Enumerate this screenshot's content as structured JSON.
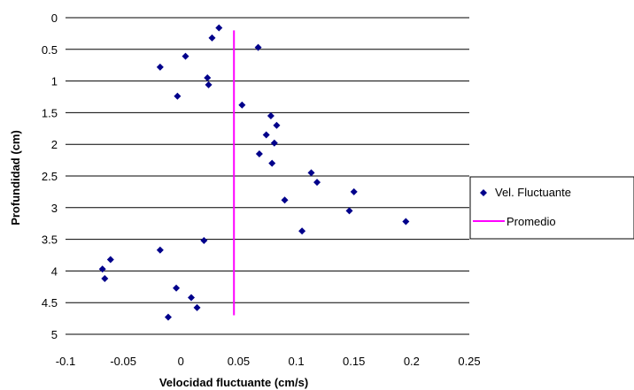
{
  "chart_data": {
    "type": "scatter",
    "xlabel": "Velocidad fluctuante (cm/s)",
    "ylabel": "Profundidad (cm)",
    "xlim": [
      -0.1,
      0.25
    ],
    "ylim": [
      0,
      5
    ],
    "y_inverted": true,
    "grid": "horizontal",
    "legend_position": "right",
    "x_ticks": [
      "-0.1",
      "-0.05",
      "0",
      "0.05",
      "0.1",
      "0.15",
      "0.2",
      "0.25"
    ],
    "y_ticks": [
      "0",
      "0.5",
      "1",
      "1.5",
      "2",
      "2.5",
      "3",
      "3.5",
      "4",
      "4.5",
      "5"
    ],
    "series": [
      {
        "name": "Vel. Fluctuante",
        "color": "#00008B",
        "marker": "diamond",
        "points": [
          {
            "x": 0.033,
            "y": 0.16
          },
          {
            "x": 0.027,
            "y": 0.32
          },
          {
            "x": 0.067,
            "y": 0.47
          },
          {
            "x": 0.004,
            "y": 0.61
          },
          {
            "x": -0.018,
            "y": 0.78
          },
          {
            "x": 0.023,
            "y": 0.95
          },
          {
            "x": 0.024,
            "y": 1.06
          },
          {
            "x": -0.003,
            "y": 1.24
          },
          {
            "x": 0.053,
            "y": 1.38
          },
          {
            "x": 0.078,
            "y": 1.55
          },
          {
            "x": 0.083,
            "y": 1.7
          },
          {
            "x": 0.074,
            "y": 1.85
          },
          {
            "x": 0.081,
            "y": 1.98
          },
          {
            "x": 0.068,
            "y": 2.15
          },
          {
            "x": 0.079,
            "y": 2.3
          },
          {
            "x": 0.113,
            "y": 2.45
          },
          {
            "x": 0.118,
            "y": 2.6
          },
          {
            "x": 0.15,
            "y": 2.75
          },
          {
            "x": 0.09,
            "y": 2.88
          },
          {
            "x": 0.146,
            "y": 3.05
          },
          {
            "x": 0.195,
            "y": 3.22
          },
          {
            "x": 0.105,
            "y": 3.37
          },
          {
            "x": 0.02,
            "y": 3.52
          },
          {
            "x": -0.018,
            "y": 3.67
          },
          {
            "x": -0.061,
            "y": 3.82
          },
          {
            "x": -0.068,
            "y": 3.97
          },
          {
            "x": -0.066,
            "y": 4.12
          },
          {
            "x": -0.004,
            "y": 4.27
          },
          {
            "x": 0.009,
            "y": 4.42
          },
          {
            "x": 0.014,
            "y": 4.58
          },
          {
            "x": -0.011,
            "y": 4.73
          }
        ]
      },
      {
        "name": "Promedio",
        "color": "#FF00FF",
        "type": "line",
        "points": [
          {
            "x": 0.046,
            "y": 0.2
          },
          {
            "x": 0.046,
            "y": 4.7
          }
        ]
      }
    ]
  }
}
